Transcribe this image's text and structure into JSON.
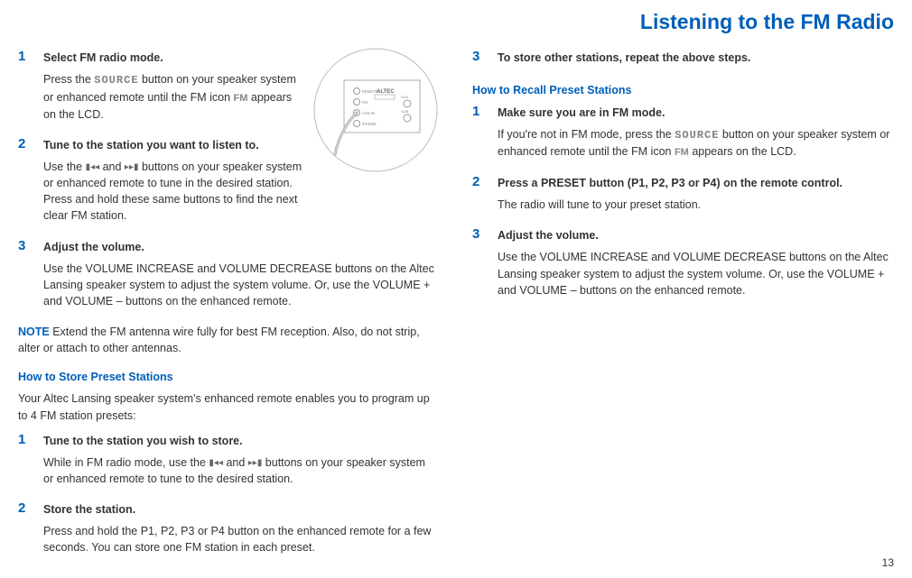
{
  "pageTitle": "Listening to the FM Radio",
  "pageNumber": "13",
  "colors": {
    "accent": "#005eb8"
  },
  "glyph": {
    "source": "SOURCE",
    "fm": "FM",
    "tuneDown": "▮◂◂",
    "tuneUp": "▸▸▮"
  },
  "left": {
    "steps": [
      {
        "num": "1",
        "head": "Select FM radio mode.",
        "text": [
          "Press the ",
          "@source",
          " button on your speaker system or enhanced remote until the FM icon ",
          "@fm",
          " appears on the LCD."
        ]
      },
      {
        "num": "2",
        "head": "Tune to the station you want to listen to.",
        "text": [
          "Use the ",
          "@tuneDown",
          " and ",
          "@tuneUp",
          " buttons on your speaker system or enhanced remote to tune in the desired station. Press and hold these same buttons to find the next clear FM station."
        ]
      },
      {
        "num": "3",
        "head": "Adjust the volume.",
        "text": [
          "Use the VOLUME INCREASE and VOLUME DECREASE buttons on the Altec Lansing speaker system to adjust the system volume. Or, use the VOLUME + and VOLUME – buttons on the enhanced remote."
        ]
      }
    ],
    "noteLabel": "NOTE",
    "noteText": " Extend the FM antenna wire fully for best FM reception. Also, do not strip, alter or attach to other antennas.",
    "subhead": "How to Store Preset Stations",
    "intro": "Your Altec Lansing speaker system's enhanced remote enables you to program up to 4 FM station presets:",
    "storeSteps": [
      {
        "num": "1",
        "head": "Tune to the station you wish to store.",
        "text": [
          "While in FM radio mode, use the ",
          "@tuneDown",
          " and ",
          "@tuneUp",
          " buttons on your speaker system or enhanced remote to tune to the desired station."
        ]
      },
      {
        "num": "2",
        "head": "Store the station.",
        "text": [
          "Press and hold the P1, P2, P3 or P4 button on the enhanced remote for a few seconds. You can store one FM station in each preset."
        ]
      }
    ]
  },
  "right": {
    "contSteps": [
      {
        "num": "3",
        "head": "To store other stations, repeat the above steps.",
        "text": []
      }
    ],
    "subhead": "How to Recall Preset Stations",
    "recallSteps": [
      {
        "num": "1",
        "head": "Make sure you are in FM mode.",
        "text": [
          "If you're not in FM mode, press the ",
          "@source",
          " button on your speaker system or enhanced remote until the FM icon ",
          "@fm",
          " appears on the LCD."
        ]
      },
      {
        "num": "2",
        "head": "Press a PRESET button (P1, P2, P3 or P4) on the remote control.",
        "text": [
          "The radio will tune to your preset station."
        ]
      },
      {
        "num": "3",
        "head": "Adjust the volume.",
        "text": [
          "Use the VOLUME INCREASE and VOLUME DECREASE buttons on the Altec Lansing speaker system to adjust the system volume. Or, use the VOLUME + and VOLUME – buttons on the enhanced remote."
        ]
      }
    ]
  },
  "diagram": {
    "labels": [
      "REMOTE",
      "FM",
      "AUX IN",
      "AUX OUT",
      "SUB"
    ],
    "brand": "ALTEC"
  }
}
